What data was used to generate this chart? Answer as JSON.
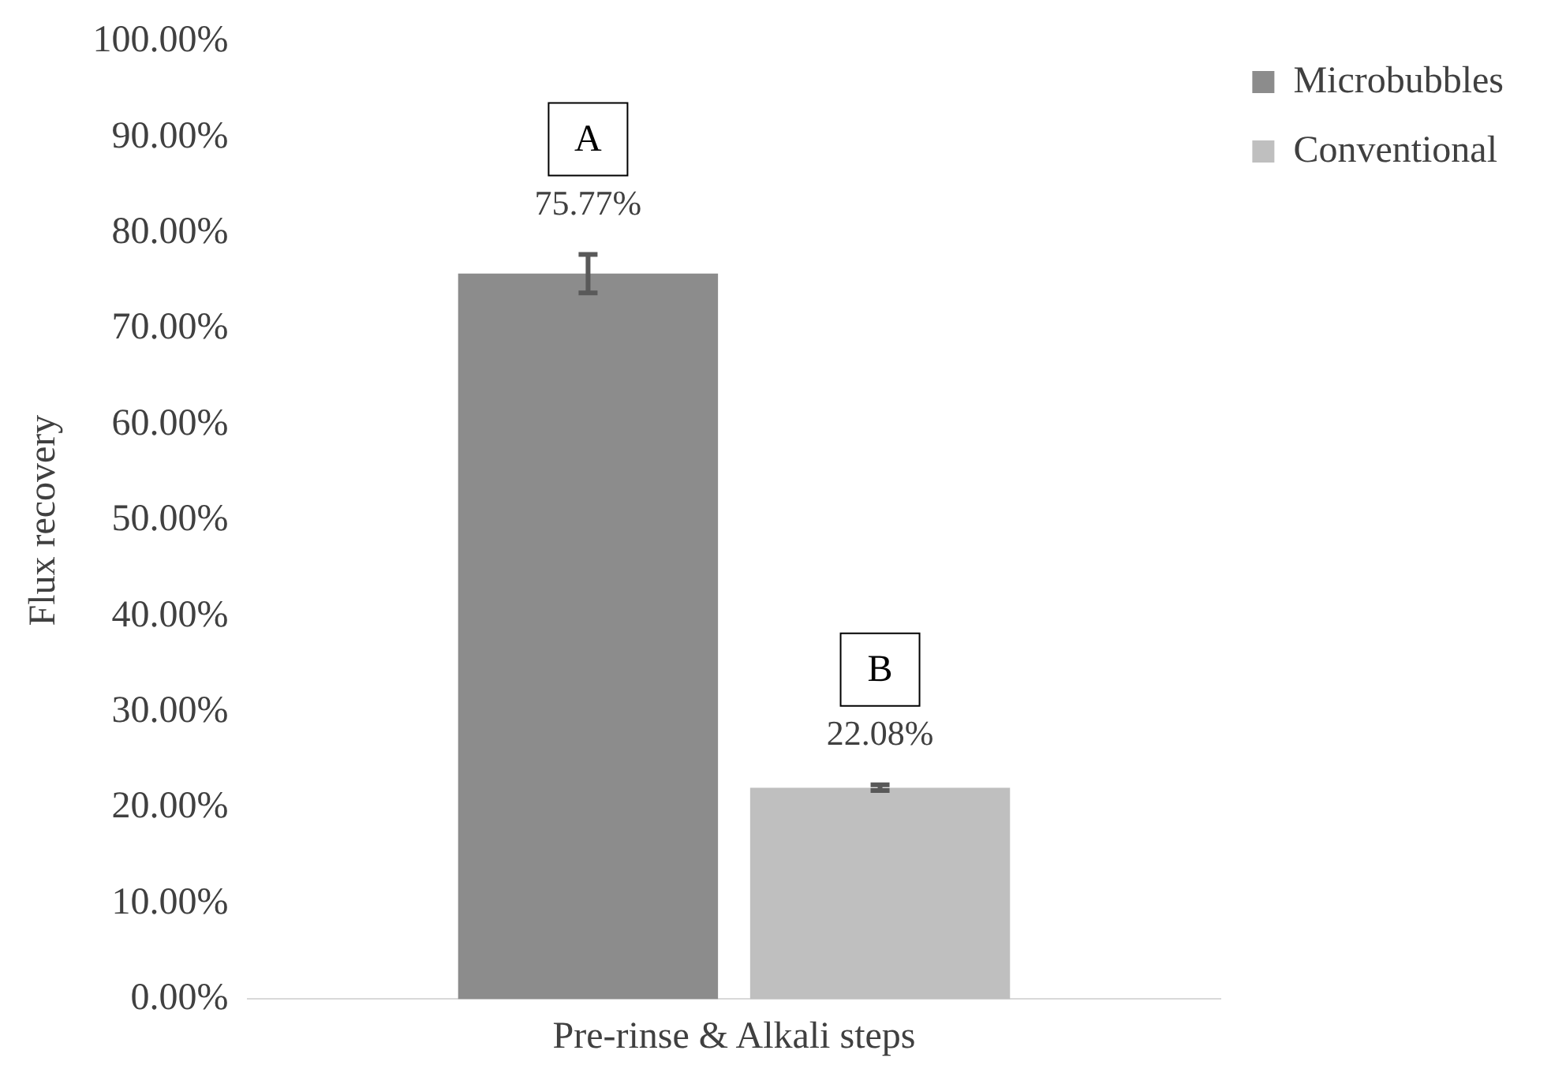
{
  "chart_data": {
    "type": "bar",
    "ylabel": "Flux recovery",
    "categories": [
      "Pre-rinse & Alkali steps"
    ],
    "series": [
      {
        "name": "Microbubbles",
        "color": "#8c8c8c",
        "values": [
          75.77
        ],
        "errors": [
          2
        ],
        "value_labels": [
          "75.77%"
        ]
      },
      {
        "name": "Conventional",
        "color": "#bfbfbf",
        "values": [
          22.08
        ],
        "errors": [
          0.3
        ],
        "value_labels": [
          "22.08%"
        ]
      }
    ],
    "ylim": [
      0,
      100
    ],
    "yticks": [
      {
        "value": 0,
        "label": "0.00%"
      },
      {
        "value": 10,
        "label": "10.00%"
      },
      {
        "value": 20,
        "label": "20.00%"
      },
      {
        "value": 30,
        "label": "30.00%"
      },
      {
        "value": 40,
        "label": "40.00%"
      },
      {
        "value": 50,
        "label": "50.00%"
      },
      {
        "value": 60,
        "label": "60.00%"
      },
      {
        "value": 70,
        "label": "70.00%"
      },
      {
        "value": 80,
        "label": "80.00%"
      },
      {
        "value": 90,
        "label": "90.00%"
      },
      {
        "value": 100,
        "label": "100.00%"
      }
    ],
    "annotations": [
      "A",
      "B"
    ],
    "grid": false,
    "legend": "top right"
  }
}
